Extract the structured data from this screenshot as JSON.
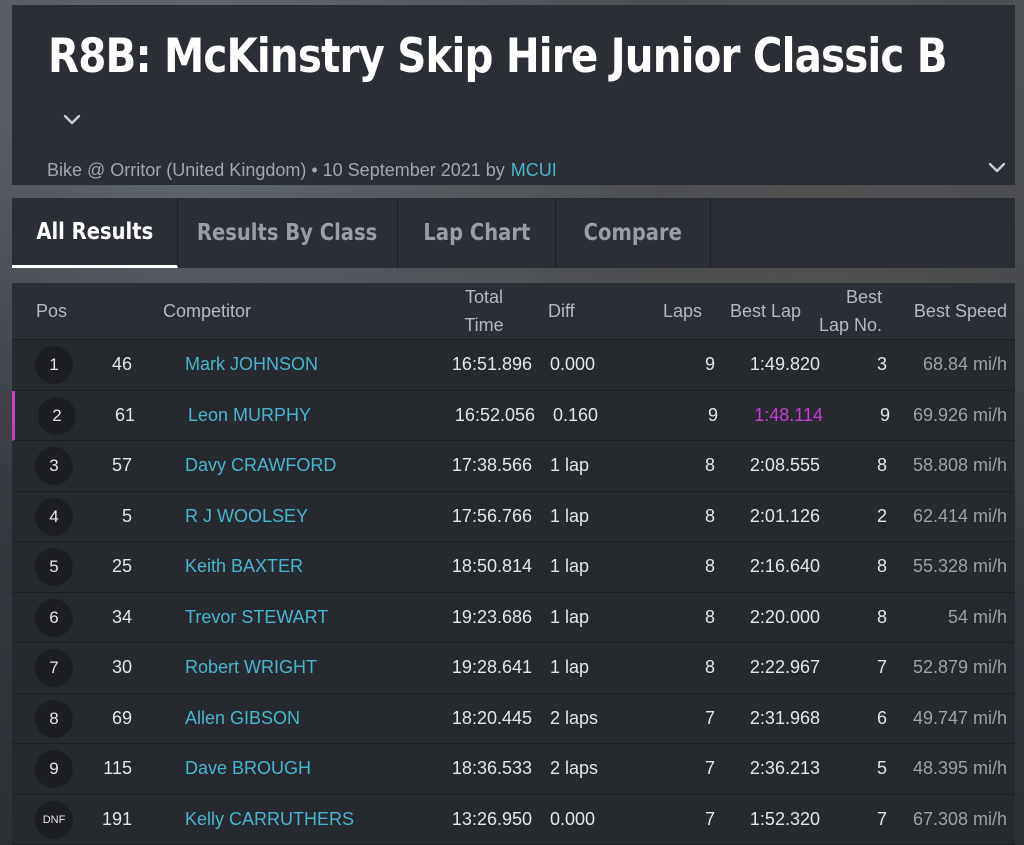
{
  "header": {
    "title": "R8B: McKinstry Skip Hire Junior Classic B",
    "meta_text": "Bike @ Orritor (United Kingdom) • 10 September 2021 by",
    "meta_link": "MCUI"
  },
  "tabs": [
    "All Results",
    "Results By Class",
    "Lap Chart",
    "Compare"
  ],
  "columns": {
    "pos": "Pos",
    "competitor": "Competitor",
    "total_time_1": "Total",
    "total_time_2": "Time",
    "diff": "Diff",
    "laps": "Laps",
    "best_lap": "Best Lap",
    "best_lap_no_1": "Best",
    "best_lap_no_2": "Lap No.",
    "best_speed": "Best Speed"
  },
  "rows": [
    {
      "pos": "1",
      "num": "46",
      "name": "Mark JOHNSON",
      "time": "16:51.896",
      "diff": "0.000",
      "laps": "9",
      "best_lap": "1:49.820",
      "best_lap_no": "3",
      "speed": "68.84 mi/h"
    },
    {
      "pos": "2",
      "num": "61",
      "name": "Leon MURPHY",
      "time": "16:52.056",
      "diff": "0.160",
      "laps": "9",
      "best_lap": "1:48.114",
      "best_lap_no": "9",
      "speed": "69.926 mi/h"
    },
    {
      "pos": "3",
      "num": "57",
      "name": "Davy CRAWFORD",
      "time": "17:38.566",
      "diff": "1 lap",
      "laps": "8",
      "best_lap": "2:08.555",
      "best_lap_no": "8",
      "speed": "58.808 mi/h"
    },
    {
      "pos": "4",
      "num": "5",
      "name": "R J WOOLSEY",
      "time": "17:56.766",
      "diff": "1 lap",
      "laps": "8",
      "best_lap": "2:01.126",
      "best_lap_no": "2",
      "speed": "62.414 mi/h"
    },
    {
      "pos": "5",
      "num": "25",
      "name": "Keith BAXTER",
      "time": "18:50.814",
      "diff": "1 lap",
      "laps": "8",
      "best_lap": "2:16.640",
      "best_lap_no": "8",
      "speed": "55.328 mi/h"
    },
    {
      "pos": "6",
      "num": "34",
      "name": "Trevor STEWART",
      "time": "19:23.686",
      "diff": "1 lap",
      "laps": "8",
      "best_lap": "2:20.000",
      "best_lap_no": "8",
      "speed": "54 mi/h"
    },
    {
      "pos": "7",
      "num": "30",
      "name": "Robert WRIGHT",
      "time": "19:28.641",
      "diff": "1 lap",
      "laps": "8",
      "best_lap": "2:22.967",
      "best_lap_no": "7",
      "speed": "52.879 mi/h"
    },
    {
      "pos": "8",
      "num": "69",
      "name": "Allen GIBSON",
      "time": "18:20.445",
      "diff": "2 laps",
      "laps": "7",
      "best_lap": "2:31.968",
      "best_lap_no": "6",
      "speed": "49.747 mi/h"
    },
    {
      "pos": "9",
      "num": "115",
      "name": "Dave BROUGH",
      "time": "18:36.533",
      "diff": "2 laps",
      "laps": "7",
      "best_lap": "2:36.213",
      "best_lap_no": "5",
      "speed": "48.395 mi/h"
    },
    {
      "pos": "DNF",
      "num": "191",
      "name": "Kelly CARRUTHERS",
      "time": "13:26.950",
      "diff": "0.000",
      "laps": "7",
      "best_lap": "1:52.320",
      "best_lap_no": "7",
      "speed": "67.308 mi/h"
    }
  ],
  "highlight": {
    "best_lap_color": "#c63ed1",
    "link_color": "#48b6cf"
  }
}
